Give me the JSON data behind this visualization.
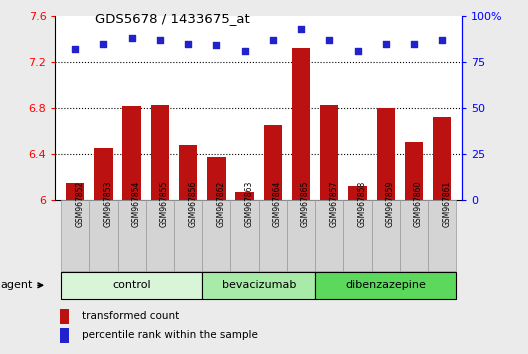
{
  "title": "GDS5678 / 1433675_at",
  "samples": [
    "GSM967852",
    "GSM967853",
    "GSM967854",
    "GSM967855",
    "GSM967856",
    "GSM967862",
    "GSM967863",
    "GSM967864",
    "GSM967865",
    "GSM967857",
    "GSM967858",
    "GSM967859",
    "GSM967860",
    "GSM967861"
  ],
  "transformed_counts": [
    6.15,
    6.45,
    6.82,
    6.83,
    6.48,
    6.37,
    6.07,
    6.65,
    7.32,
    6.83,
    6.12,
    6.8,
    6.5,
    6.72
  ],
  "percentile_ranks": [
    82,
    85,
    88,
    87,
    85,
    84,
    81,
    87,
    93,
    87,
    81,
    85,
    85,
    87
  ],
  "groups": [
    {
      "name": "control",
      "start": 0,
      "end": 5,
      "color": "#d8f5d8"
    },
    {
      "name": "bevacizumab",
      "start": 5,
      "end": 9,
      "color": "#a8eba8"
    },
    {
      "name": "dibenzazepine",
      "start": 9,
      "end": 14,
      "color": "#5cd85c"
    }
  ],
  "bar_color": "#bb1111",
  "dot_color": "#2222cc",
  "ylim_left": [
    6.0,
    7.6
  ],
  "ylim_right": [
    0,
    100
  ],
  "yticks_left": [
    6.0,
    6.4,
    6.8,
    7.2,
    7.6
  ],
  "yticks_right": [
    0,
    25,
    50,
    75,
    100
  ],
  "ytick_labels_right": [
    "0",
    "25",
    "50",
    "75",
    "100%"
  ],
  "grid_values": [
    6.4,
    6.8,
    7.2
  ],
  "bar_width": 0.65,
  "background_color": "#ebebeb",
  "plot_bg_color": "#ffffff",
  "legend_red_label": "transformed count",
  "legend_blue_label": "percentile rank within the sample",
  "agent_label": "agent",
  "sample_box_color": "#d4d4d4",
  "sample_box_edge": "#999999"
}
